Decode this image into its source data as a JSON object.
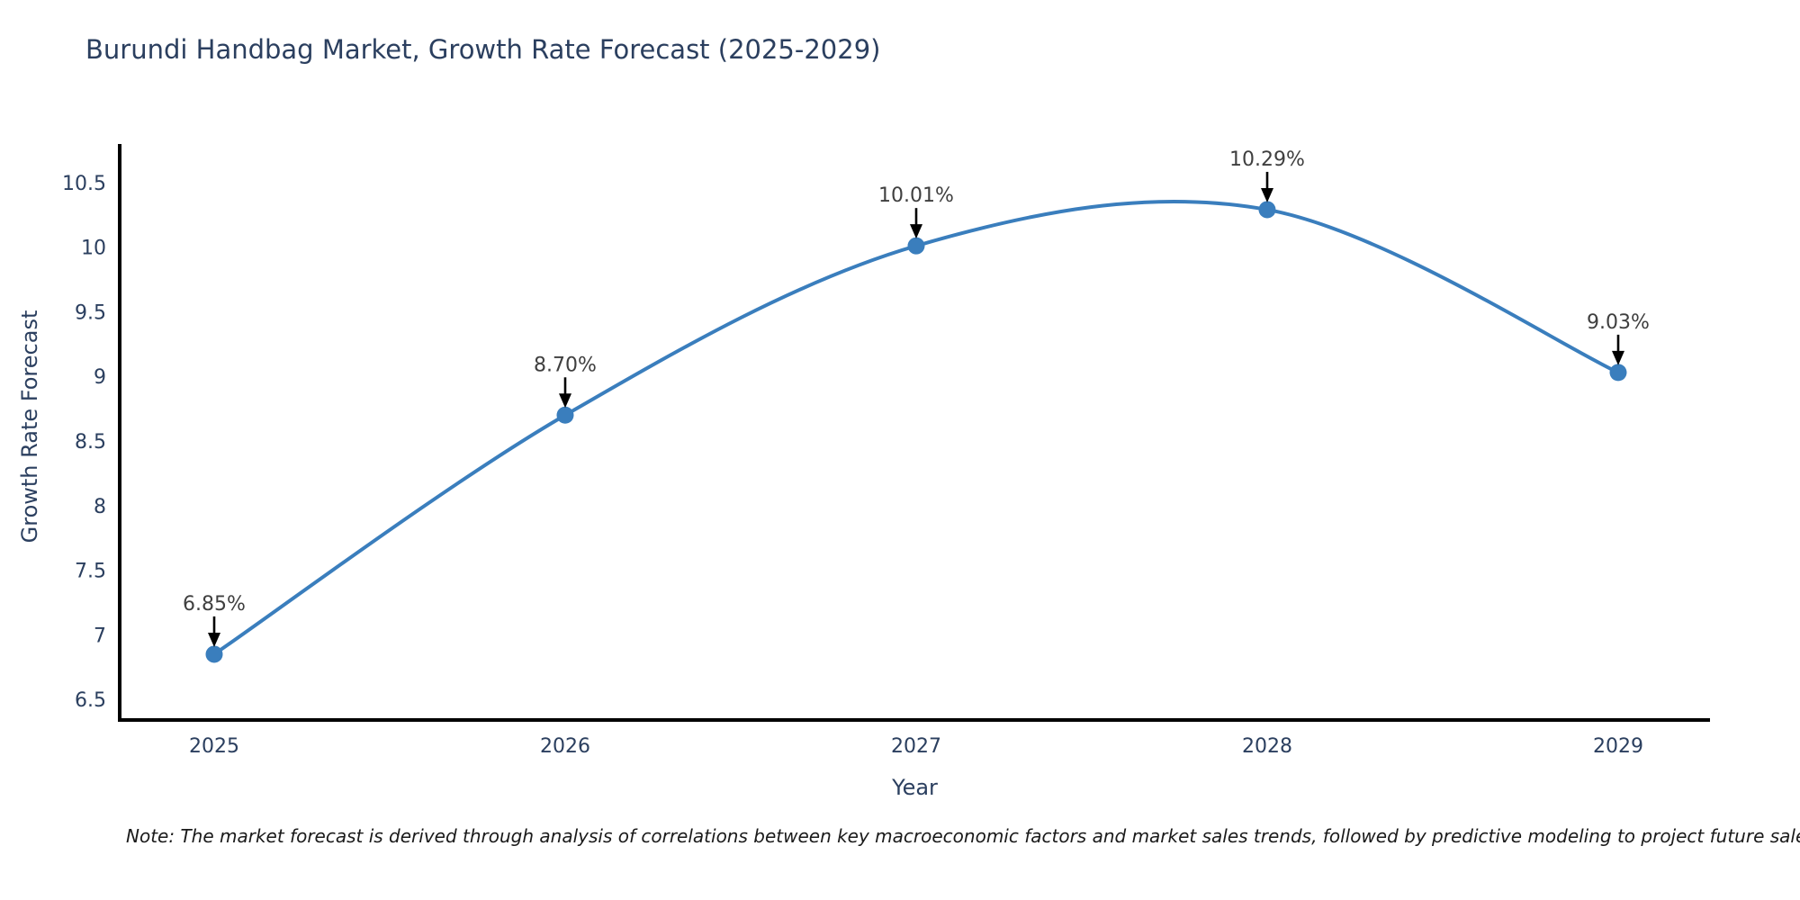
{
  "title": "Burundi Handbag Market, Growth Rate Forecast (2025-2029)",
  "axes": {
    "x_label": "Year",
    "y_label": "Growth Rate Forecast"
  },
  "note": "Note: The market forecast is derived through analysis of correlations between key macroeconomic factors and market sales trends, followed by predictive modeling to project future sales.",
  "colors": {
    "line": "#3a7ebd",
    "marker": "#3a7ebd",
    "axis_line": "#000000",
    "tick_text": "#2b3f5f",
    "title_text": "#2b3f5f",
    "annotation_text": "#3f3f3f",
    "arrow": "#000000",
    "background": "#ffffff"
  },
  "chart_data": {
    "type": "line",
    "title": "Burundi Handbag Market, Growth Rate Forecast (2025-2029)",
    "xlabel": "Year",
    "ylabel": "Growth Rate Forecast",
    "x": [
      2025,
      2026,
      2027,
      2028,
      2029
    ],
    "y": [
      6.85,
      8.7,
      10.01,
      10.29,
      9.03
    ],
    "point_labels": [
      "6.85%",
      "8.70%",
      "10.01%",
      "10.29%",
      "9.03%"
    ],
    "yticks": [
      6.5,
      7,
      7.5,
      8,
      8.5,
      9,
      9.5,
      10,
      10.5
    ],
    "xticks": [
      2025,
      2026,
      2027,
      2028,
      2029
    ],
    "ylim": [
      6.34,
      10.8
    ],
    "xlim": [
      2024.73,
      2029.26
    ],
    "grid": false,
    "legend": false,
    "line_shape": "spline",
    "annotations_with_arrows": true
  }
}
